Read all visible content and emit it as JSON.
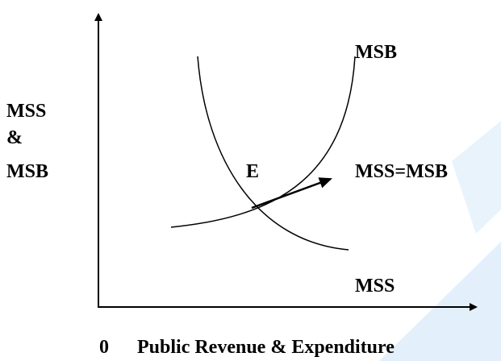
{
  "y_axis_label": [
    "MSS",
    "&",
    "MSB"
  ],
  "curve_labels": {
    "msb": "MSB",
    "mss": "MSS"
  },
  "equilibrium_label": "E",
  "equality_label": "MSS=MSB",
  "origin_label": "0",
  "x_axis_label": "Public Revenue & Expenditure"
}
